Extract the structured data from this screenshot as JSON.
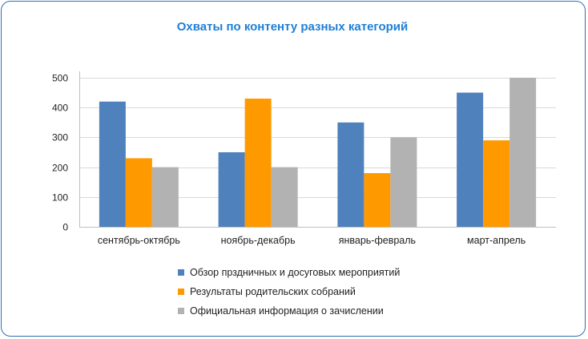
{
  "chart_data": {
    "type": "bar",
    "title": "Охваты по контенту разных категорий",
    "categories": [
      "сентябрь-октябрь",
      "ноябрь-декабрь",
      "январь-февраль",
      "март-апрель"
    ],
    "series": [
      {
        "name": "Обзор прздничных и досуговых мероприятий",
        "color": "#4f81bd",
        "values": [
          420,
          250,
          350,
          450
        ]
      },
      {
        "name": "Результаты родительских собраний",
        "color": "#ff9900",
        "values": [
          230,
          430,
          180,
          290
        ]
      },
      {
        "name": "Официальная информация о зачислении",
        "color": "#b2b2b2",
        "values": [
          200,
          200,
          300,
          500
        ]
      }
    ],
    "ylim": [
      0,
      500
    ],
    "yticks": [
      0,
      100,
      200,
      300,
      400,
      500
    ],
    "grid": true,
    "legend_position": "bottom"
  }
}
